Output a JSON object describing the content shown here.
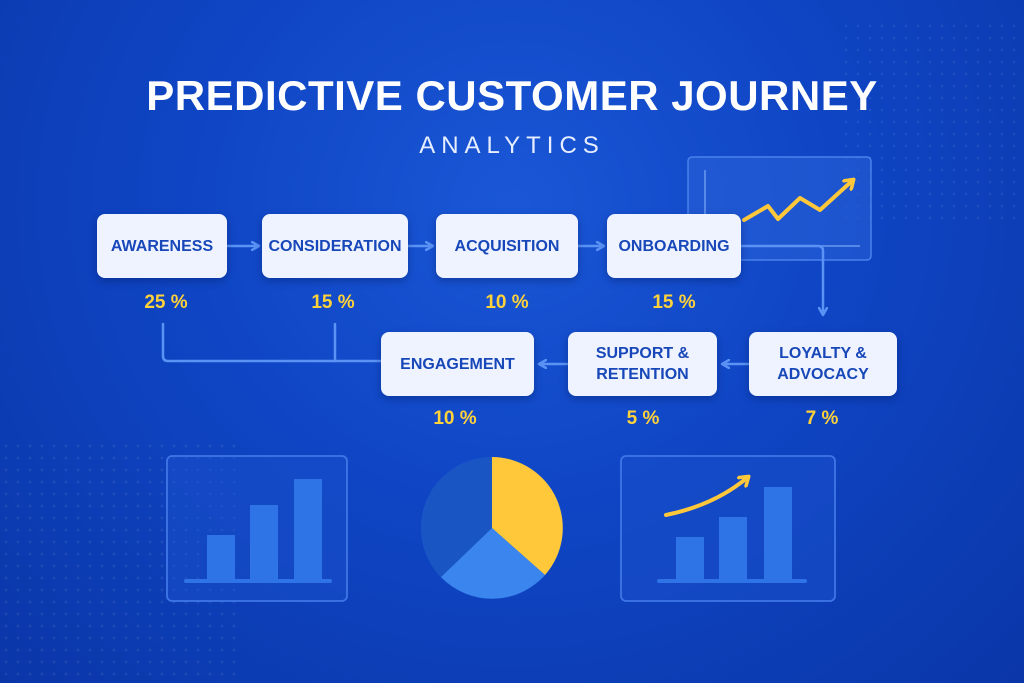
{
  "title": "PREDICTIVE CUSTOMER JOURNEY",
  "subtitle": "ANALYTICS",
  "colors": {
    "background": "#0f45c4",
    "box_fill": "#eef3ff",
    "box_text": "#1747b8",
    "percent": "#ffd23a",
    "connector": "#5b93f5",
    "trend_arrow": "#ffc83a"
  },
  "stages": [
    {
      "id": "awareness",
      "label": "AWARENESS",
      "percent": "25 %"
    },
    {
      "id": "consideration",
      "label": "CONSIDERATION",
      "percent": "15 %"
    },
    {
      "id": "acquisition",
      "label": "ACQUISITION",
      "percent": "10 %"
    },
    {
      "id": "onboarding",
      "label": "ONBOARDING",
      "percent": "15 %"
    },
    {
      "id": "loyalty",
      "label": "LOYALTY &\nADVOCACY",
      "percent": "7 %"
    },
    {
      "id": "support",
      "label": "SUPPORT &\nRETENTION",
      "percent": "5 %"
    },
    {
      "id": "engagement",
      "label": "ENGAGEMENT",
      "percent": "10 %"
    }
  ],
  "icons": [
    "trend-chart-icon",
    "bar-chart-icon",
    "pie-chart-icon",
    "growth-bar-chart-icon"
  ]
}
